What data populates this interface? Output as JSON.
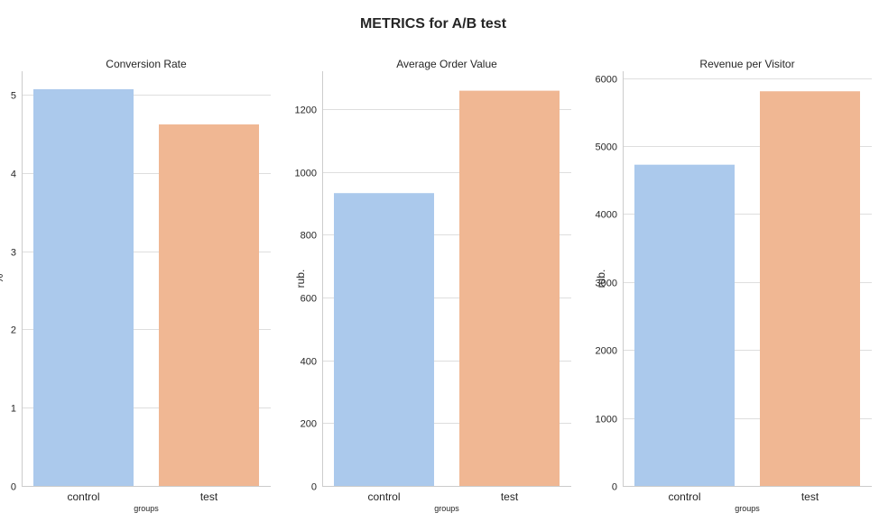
{
  "title": "METRICS for A/B test",
  "colors": {
    "control": "#abc9ec",
    "test": "#f0b793"
  },
  "chart_data": [
    {
      "type": "bar",
      "title": "Conversion Rate",
      "xlabel": "groups",
      "ylabel": "%",
      "categories": [
        "control",
        "test"
      ],
      "values": [
        5.07,
        4.62
      ],
      "ylim": [
        0,
        5.3
      ],
      "yticks": [
        0,
        1,
        2,
        3,
        4,
        5
      ],
      "grid": true
    },
    {
      "type": "bar",
      "title": "Average Order Value",
      "xlabel": "groups",
      "ylabel": "rub.",
      "categories": [
        "control",
        "test"
      ],
      "values": [
        932,
        1258
      ],
      "ylim": [
        0,
        1320
      ],
      "yticks": [
        0,
        200,
        400,
        600,
        800,
        1000,
        1200
      ],
      "grid": true
    },
    {
      "type": "bar",
      "title": "Revenue per Visitor",
      "xlabel": "groups",
      "ylabel": "rub.",
      "categories": [
        "control",
        "test"
      ],
      "values": [
        4725,
        5805
      ],
      "ylim": [
        0,
        6100
      ],
      "yticks": [
        0,
        1000,
        2000,
        3000,
        4000,
        5000,
        6000
      ],
      "grid": true
    }
  ]
}
